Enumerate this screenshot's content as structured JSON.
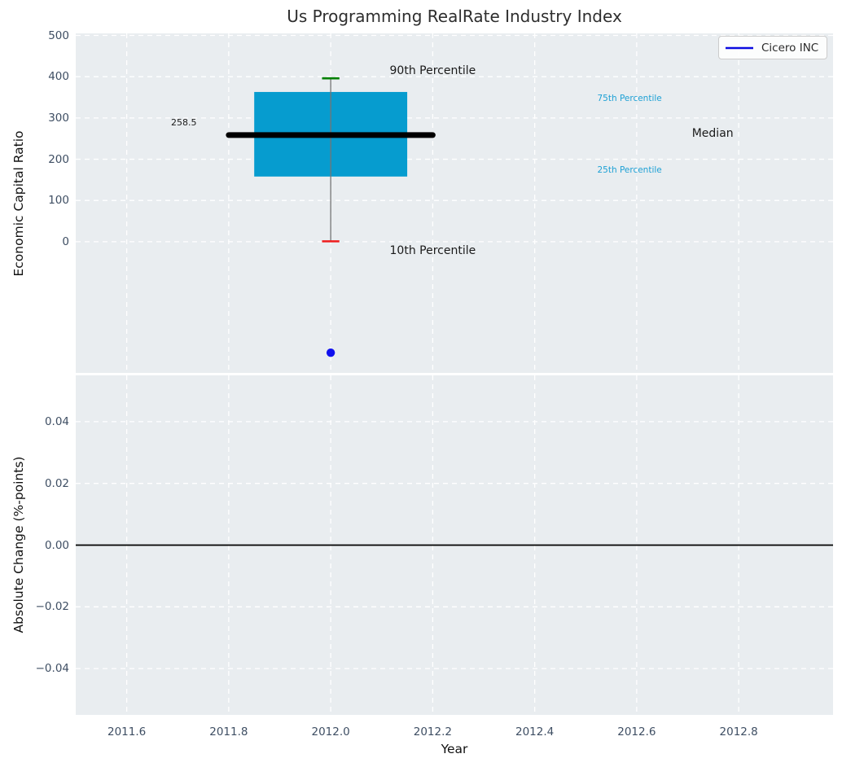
{
  "title": "Us Programming RealRate Industry Index",
  "legend": {
    "label": "Cicero INC"
  },
  "colors": {
    "axes_bg": "#e9edf0",
    "grid": "#ffffff",
    "tick_label": "#3e4e63",
    "box_fill": "#069ccf",
    "median_line": "#000000",
    "whisker": "#757575",
    "cap_90": "#008000",
    "cap_10": "#ee1c1c",
    "company_dot": "#1010ee",
    "legend_line": "#0b0be0",
    "zero_line": "#000000",
    "percentile_label": "#1ea1d5",
    "annotation_dark": "#1a1a1a"
  },
  "chart_data": [
    {
      "type": "boxplot",
      "title": "Us Programming RealRate Industry Index",
      "ylabel": "Economic Capital Ratio",
      "xlim": [
        2011.5,
        2012.985
      ],
      "ylim": [
        -318,
        505
      ],
      "grid": "white-dashed",
      "legend_position": "upper right",
      "yticks": {
        "values": [
          500,
          400,
          300,
          200,
          100,
          0
        ],
        "labels": [
          "500",
          "400",
          "300",
          "200",
          "100",
          "0"
        ]
      },
      "xticks": {
        "values": [
          2011.6,
          2011.8,
          2012.0,
          2012.2,
          2012.4,
          2012.6,
          2012.8
        ],
        "labels": []
      },
      "box": {
        "x_center": 2012.0,
        "box_x": [
          2011.85,
          2012.15
        ],
        "median_x": [
          2011.8,
          2012.2
        ],
        "cap_halfwidth": 0.017,
        "p10": 1,
        "p25": 158,
        "median": 258.5,
        "p75": 363,
        "p90": 396,
        "median_value_label": "258.5"
      },
      "company_point": {
        "name": "Cicero INC",
        "x": 2012.0,
        "y": -269
      },
      "annotations": [
        {
          "text": "258.5",
          "x": 2011.712,
          "y": 288,
          "size": 11,
          "color": "#1a1a1a"
        },
        {
          "text": "90th Percentile",
          "x": 2012.2,
          "y": 415,
          "size": 14,
          "color": "#1a1a1a"
        },
        {
          "text": "10th Percentile",
          "x": 2012.2,
          "y": -21,
          "size": 14,
          "color": "#1a1a1a"
        },
        {
          "text": "75th Percentile",
          "x": 2012.586,
          "y": 348,
          "size": 10.5,
          "color": "#1ea1d5"
        },
        {
          "text": "Median",
          "x": 2012.749,
          "y": 262,
          "size": 14,
          "color": "#1a1a1a"
        },
        {
          "text": "25th Percentile",
          "x": 2012.586,
          "y": 174,
          "size": 10.5,
          "color": "#1ea1d5"
        }
      ]
    },
    {
      "type": "line",
      "ylabel": "Absolute Change (%-points)",
      "xlabel": "Year",
      "xlim": [
        2011.5,
        2012.985
      ],
      "ylim": [
        -0.055,
        0.055
      ],
      "grid": "white-dashed",
      "yticks": {
        "values": [
          0.04,
          0.02,
          0.0,
          -0.02,
          -0.04
        ],
        "labels": [
          "0.04",
          "0.02",
          "0.00",
          "−0.02",
          "−0.04"
        ]
      },
      "xticks": {
        "values": [
          2011.6,
          2011.8,
          2012.0,
          2012.2,
          2012.4,
          2012.6,
          2012.8
        ],
        "labels": [
          "2011.6",
          "2011.8",
          "2012.0",
          "2012.2",
          "2012.4",
          "2012.6",
          "2012.8"
        ]
      },
      "zero_line": 0.0,
      "series": []
    }
  ]
}
